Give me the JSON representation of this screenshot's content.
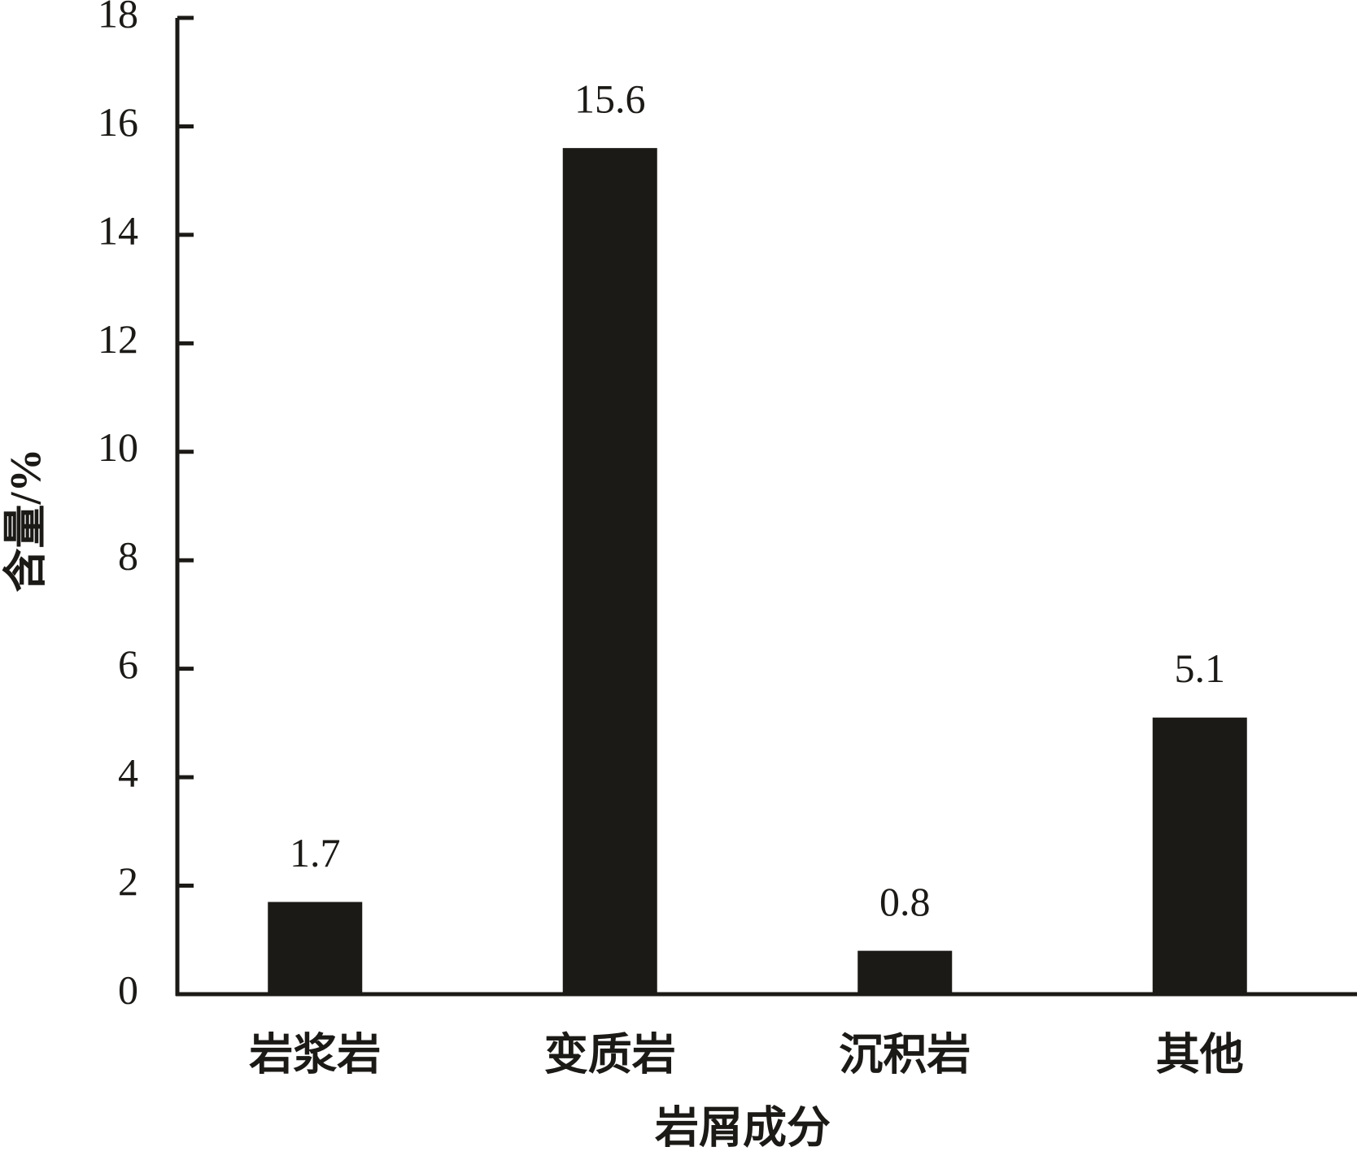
{
  "chart_data": {
    "type": "bar",
    "x_label": "岩屑成分",
    "y_label": "含量/%",
    "categories": [
      "岩浆岩",
      "变质岩",
      "沉积岩",
      "其他"
    ],
    "values": [
      1.7,
      15.6,
      0.8,
      5.1
    ],
    "color": "#1c1a17",
    "ylim": [
      0,
      18
    ],
    "yticks": [
      0,
      2,
      4,
      6,
      8,
      10,
      12,
      14,
      16,
      18
    ],
    "grid": false
  }
}
